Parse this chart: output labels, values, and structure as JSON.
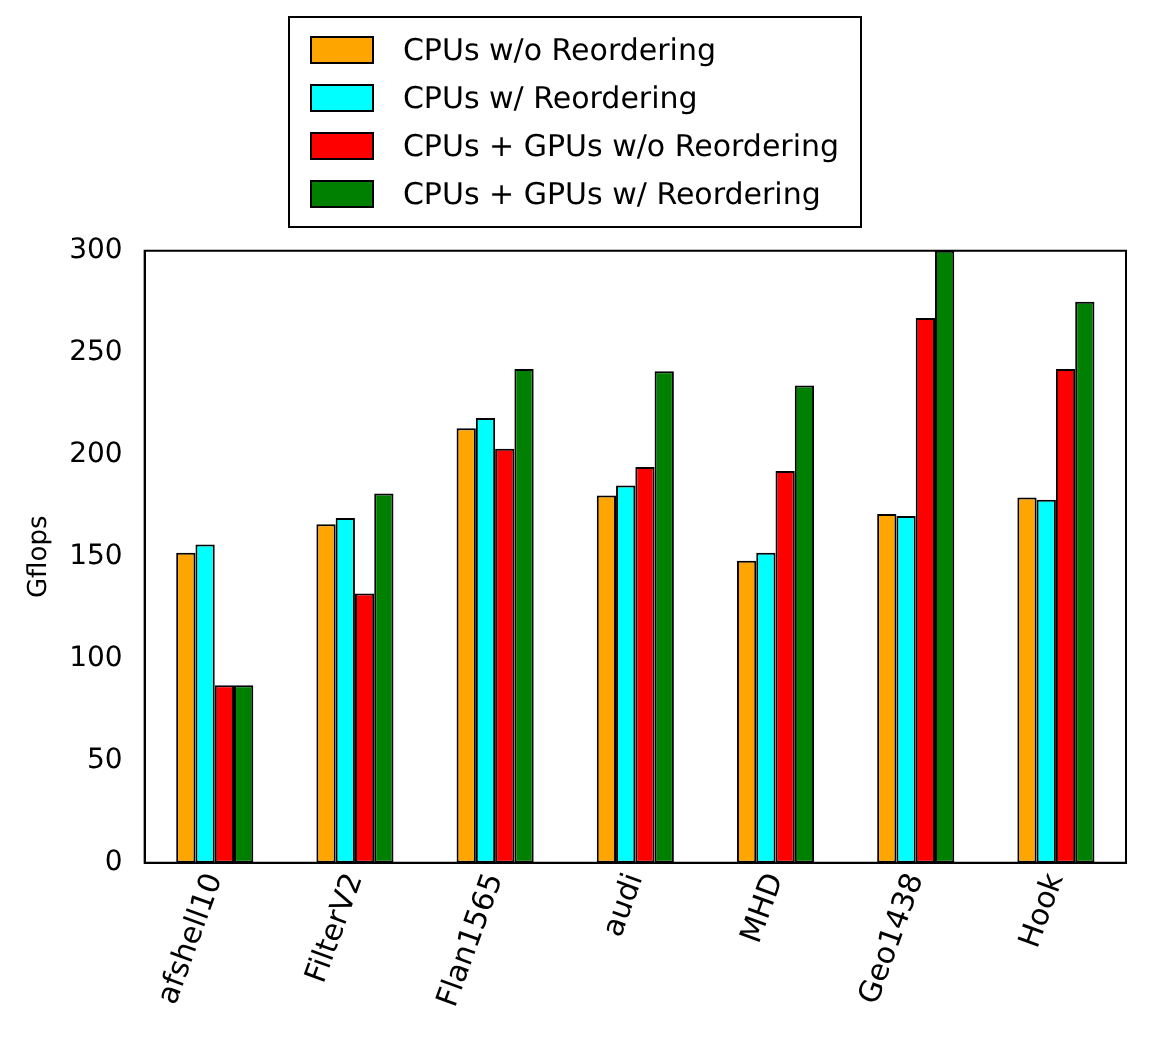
{
  "chart_data": {
    "type": "bar",
    "ylabel": "Gflops",
    "categories": [
      "afshell10",
      "FilterV2",
      "Flan1565",
      "audi",
      "MHD",
      "Geo1438",
      "Hook"
    ],
    "series": [
      {
        "name": "CPUs w/o Reordering",
        "color": "#ffa500",
        "values": [
          152,
          166,
          213,
          180,
          148,
          171,
          179
        ]
      },
      {
        "name": "CPUs w/ Reordering",
        "color": "#00ffff",
        "values": [
          156,
          169,
          218,
          185,
          152,
          170,
          178
        ]
      },
      {
        "name": "CPUs + GPUs w/o Reordering",
        "color": "#ff0000",
        "values": [
          87,
          132,
          203,
          194,
          192,
          267,
          242
        ]
      },
      {
        "name": "CPUs + GPUs w/ Reordering",
        "color": "#008000",
        "values": [
          87,
          181,
          242,
          241,
          234,
          300,
          275
        ]
      }
    ],
    "ylim": [
      0,
      300
    ],
    "yticks": [
      0,
      50,
      100,
      150,
      200,
      250,
      300
    ],
    "grid": false,
    "legend": "top"
  }
}
